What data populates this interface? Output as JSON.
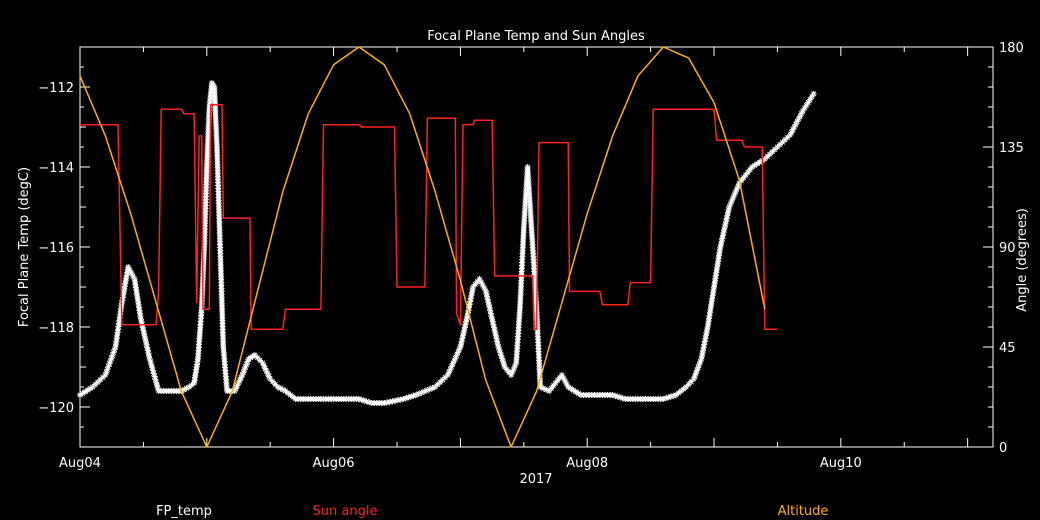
{
  "chart_data": {
    "type": "line",
    "title": "Focal Plane Temp and Sun Angles",
    "xlabel": "2017",
    "ylabel_left": "Focal Plane Temp (degC)",
    "ylabel_right": "Angle (degrees)",
    "x_ticks": [
      "Aug04",
      "Aug06",
      "Aug08",
      "Aug10"
    ],
    "xlim": [
      0,
      7.2
    ],
    "ylim_left": [
      -121,
      -111
    ],
    "ylim_right": [
      0,
      180
    ],
    "y_ticks_left": [
      -120,
      -118,
      -116,
      -114,
      -112
    ],
    "y_ticks_right": [
      0,
      45,
      90,
      135,
      180
    ],
    "legend": [
      "FP_temp",
      "Sun angle",
      "Altitude"
    ],
    "series": [
      {
        "name": "FP_temp",
        "axis": "left",
        "color": "#ffffff",
        "marker": "asterisk",
        "points": [
          [
            0.0,
            -119.7
          ],
          [
            0.1,
            -119.5
          ],
          [
            0.2,
            -119.2
          ],
          [
            0.28,
            -118.5
          ],
          [
            0.33,
            -117.4
          ],
          [
            0.38,
            -116.5
          ],
          [
            0.43,
            -116.8
          ],
          [
            0.48,
            -117.8
          ],
          [
            0.55,
            -118.8
          ],
          [
            0.62,
            -119.6
          ],
          [
            0.7,
            -119.6
          ],
          [
            0.8,
            -119.6
          ],
          [
            0.86,
            -119.5
          ],
          [
            0.9,
            -119.4
          ],
          [
            0.93,
            -118.8
          ],
          [
            0.96,
            -117.5
          ],
          [
            0.98,
            -116.0
          ],
          [
            1.0,
            -114.0
          ],
          [
            1.02,
            -112.5
          ],
          [
            1.04,
            -111.9
          ],
          [
            1.06,
            -112.0
          ],
          [
            1.08,
            -113.5
          ],
          [
            1.1,
            -115.5
          ],
          [
            1.13,
            -118.5
          ],
          [
            1.16,
            -119.6
          ],
          [
            1.22,
            -119.6
          ],
          [
            1.28,
            -119.2
          ],
          [
            1.33,
            -118.8
          ],
          [
            1.38,
            -118.7
          ],
          [
            1.44,
            -118.9
          ],
          [
            1.5,
            -119.3
          ],
          [
            1.56,
            -119.5
          ],
          [
            1.62,
            -119.6
          ],
          [
            1.7,
            -119.8
          ],
          [
            1.8,
            -119.8
          ],
          [
            1.9,
            -119.8
          ],
          [
            2.0,
            -119.8
          ],
          [
            2.1,
            -119.8
          ],
          [
            2.2,
            -119.8
          ],
          [
            2.3,
            -119.9
          ],
          [
            2.4,
            -119.9
          ],
          [
            2.55,
            -119.8
          ],
          [
            2.65,
            -119.7
          ],
          [
            2.8,
            -119.5
          ],
          [
            2.9,
            -119.2
          ],
          [
            3.0,
            -118.5
          ],
          [
            3.05,
            -117.8
          ],
          [
            3.1,
            -117.0
          ],
          [
            3.15,
            -116.8
          ],
          [
            3.2,
            -117.1
          ],
          [
            3.25,
            -117.8
          ],
          [
            3.3,
            -118.5
          ],
          [
            3.35,
            -119.0
          ],
          [
            3.4,
            -119.2
          ],
          [
            3.44,
            -118.9
          ],
          [
            3.47,
            -117.5
          ],
          [
            3.5,
            -115.5
          ],
          [
            3.53,
            -114.0
          ],
          [
            3.56,
            -115.5
          ],
          [
            3.6,
            -117.5
          ],
          [
            3.63,
            -119.5
          ],
          [
            3.7,
            -119.6
          ],
          [
            3.75,
            -119.4
          ],
          [
            3.8,
            -119.2
          ],
          [
            3.85,
            -119.5
          ],
          [
            3.95,
            -119.7
          ],
          [
            4.1,
            -119.7
          ],
          [
            4.2,
            -119.7
          ],
          [
            4.3,
            -119.8
          ],
          [
            4.4,
            -119.8
          ],
          [
            4.5,
            -119.8
          ],
          [
            4.6,
            -119.8
          ],
          [
            4.7,
            -119.7
          ],
          [
            4.78,
            -119.5
          ],
          [
            4.84,
            -119.3
          ],
          [
            4.9,
            -118.8
          ],
          [
            4.95,
            -118.0
          ],
          [
            5.0,
            -117.0
          ],
          [
            5.05,
            -116.0
          ],
          [
            5.12,
            -115.0
          ],
          [
            5.2,
            -114.4
          ],
          [
            5.3,
            -114.0
          ],
          [
            5.4,
            -113.8
          ],
          [
            5.5,
            -113.5
          ],
          [
            5.6,
            -113.2
          ],
          [
            5.7,
            -112.6
          ],
          [
            5.8,
            -112.1
          ]
        ]
      },
      {
        "name": "Sun angle",
        "axis": "right",
        "color": "#ff2020",
        "points": [
          [
            0.0,
            145
          ],
          [
            0.15,
            145
          ],
          [
            0.3,
            145
          ],
          [
            0.33,
            55
          ],
          [
            0.6,
            55
          ],
          [
            0.62,
            70
          ],
          [
            0.64,
            152
          ],
          [
            0.8,
            152
          ],
          [
            0.82,
            150
          ],
          [
            0.9,
            150
          ],
          [
            0.92,
            65
          ],
          [
            0.94,
            140
          ],
          [
            0.96,
            140
          ],
          [
            0.97,
            62
          ],
          [
            1.02,
            62
          ],
          [
            1.03,
            154
          ],
          [
            1.1,
            154
          ],
          [
            1.12,
            154
          ],
          [
            1.13,
            103
          ],
          [
            1.34,
            103
          ],
          [
            1.35,
            53
          ],
          [
            1.6,
            53
          ],
          [
            1.62,
            62
          ],
          [
            1.9,
            62
          ],
          [
            1.92,
            145
          ],
          [
            2.2,
            145
          ],
          [
            2.22,
            144
          ],
          [
            2.48,
            144
          ],
          [
            2.5,
            72
          ],
          [
            2.72,
            72
          ],
          [
            2.74,
            148
          ],
          [
            2.96,
            148
          ],
          [
            2.97,
            60
          ],
          [
            3.0,
            55
          ],
          [
            3.02,
            145
          ],
          [
            3.1,
            145
          ],
          [
            3.11,
            147
          ],
          [
            3.25,
            147
          ],
          [
            3.27,
            77
          ],
          [
            3.57,
            77
          ],
          [
            3.58,
            53
          ],
          [
            3.6,
            53
          ],
          [
            3.62,
            137
          ],
          [
            3.85,
            137
          ],
          [
            3.86,
            70
          ],
          [
            4.1,
            70
          ],
          [
            4.12,
            64
          ],
          [
            4.2,
            64
          ],
          [
            4.22,
            64
          ],
          [
            4.32,
            64
          ],
          [
            4.34,
            74
          ],
          [
            4.5,
            74
          ],
          [
            4.52,
            152
          ],
          [
            5.0,
            152
          ],
          [
            5.02,
            138
          ],
          [
            5.22,
            138
          ],
          [
            5.24,
            135
          ],
          [
            5.3,
            135
          ],
          [
            5.32,
            135
          ],
          [
            5.38,
            135
          ],
          [
            5.4,
            53
          ],
          [
            5.5,
            53
          ]
        ]
      },
      {
        "name": "Altitude",
        "axis": "right",
        "color": "#ffb000",
        "points": [
          [
            0.0,
            167
          ],
          [
            0.2,
            140
          ],
          [
            0.4,
            105
          ],
          [
            0.6,
            65
          ],
          [
            0.8,
            25
          ],
          [
            1.0,
            0
          ],
          [
            1.2,
            25
          ],
          [
            1.4,
            70
          ],
          [
            1.6,
            115
          ],
          [
            1.8,
            150
          ],
          [
            2.0,
            172
          ],
          [
            2.2,
            180
          ],
          [
            2.4,
            172
          ],
          [
            2.6,
            150
          ],
          [
            2.8,
            115
          ],
          [
            3.0,
            75
          ],
          [
            3.2,
            30
          ],
          [
            3.4,
            0
          ],
          [
            3.6,
            25
          ],
          [
            3.8,
            65
          ],
          [
            4.0,
            105
          ],
          [
            4.2,
            140
          ],
          [
            4.4,
            167
          ],
          [
            4.6,
            180
          ],
          [
            4.8,
            175
          ],
          [
            5.0,
            155
          ],
          [
            5.2,
            120
          ],
          [
            5.4,
            62
          ]
        ]
      }
    ]
  }
}
